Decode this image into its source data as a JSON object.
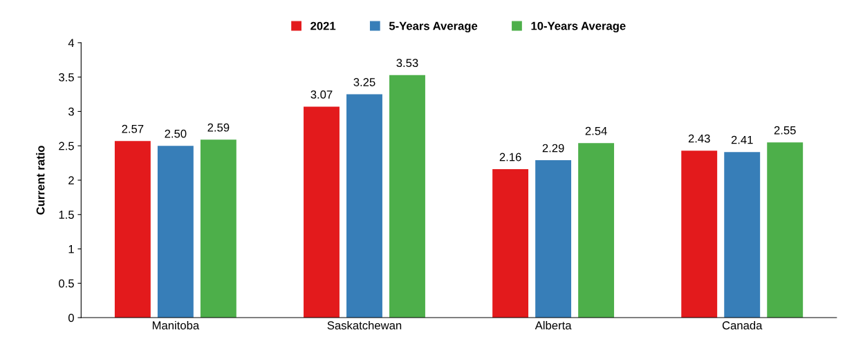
{
  "chart_data": {
    "type": "bar",
    "ylabel": "Current ratio",
    "categories": [
      "Manitoba",
      "Saskatchewan",
      "Alberta",
      "Canada"
    ],
    "series": [
      {
        "name": "2021",
        "color": "#e31a1c",
        "values": [
          2.57,
          3.07,
          2.16,
          2.43
        ],
        "value_labels": [
          "2.57",
          "3.07",
          "2.16",
          "2.43"
        ]
      },
      {
        "name": "5-Years Average",
        "color": "#377eb8",
        "values": [
          2.5,
          3.25,
          2.29,
          2.41
        ],
        "value_labels": [
          "2.50",
          "3.25",
          "2.29",
          "2.41"
        ]
      },
      {
        "name": "10-Years Average",
        "color": "#4daf4a",
        "values": [
          2.59,
          3.53,
          2.54,
          2.55
        ],
        "value_labels": [
          "2.59",
          "3.53",
          "2.54",
          "2.55"
        ]
      }
    ],
    "ylim": [
      0,
      4
    ],
    "yticks": [
      0,
      0.5,
      1,
      1.5,
      2,
      2.5,
      3,
      3.5,
      4
    ],
    "grid": false,
    "legend": "top"
  }
}
